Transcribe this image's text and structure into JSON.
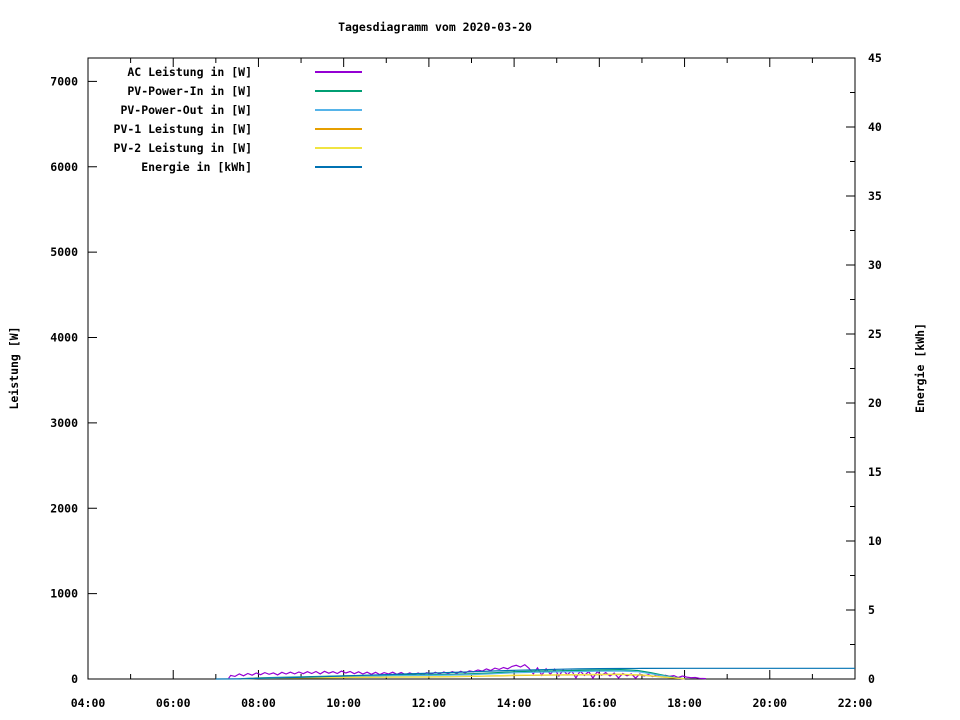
{
  "title": "Tagesdiagramm vom 2020-03-20",
  "colors": {
    "ac": "#9400d3",
    "pv_power_in": "#009e73",
    "pv_power_out": "#56b4e9",
    "pv1": "#e69f00",
    "pv2": "#f0e442",
    "energie": "#0072b2",
    "axis": "#000000",
    "background": "#ffffff"
  },
  "chart_data": {
    "type": "line",
    "title": "Tagesdiagramm vom 2020-03-20",
    "legend_position": "top-left-inside",
    "grid": false,
    "x_axis": {
      "range_hours": [
        4,
        22
      ],
      "major_ticks": [
        {
          "h": 4,
          "label": "04:00"
        },
        {
          "h": 6,
          "label": "06:00"
        },
        {
          "h": 8,
          "label": "08:00"
        },
        {
          "h": 10,
          "label": "10:00"
        },
        {
          "h": 12,
          "label": "12:00"
        },
        {
          "h": 14,
          "label": "14:00"
        },
        {
          "h": 16,
          "label": "16:00"
        },
        {
          "h": 18,
          "label": "18:00"
        },
        {
          "h": 20,
          "label": "20:00"
        },
        {
          "h": 22,
          "label": "22:00"
        }
      ],
      "minor_ticks_hours": [
        5,
        7,
        9,
        11,
        13,
        15,
        17,
        19,
        21
      ]
    },
    "y_left": {
      "label": "Leistung [W]",
      "range": [
        0,
        7274
      ],
      "ticks": [
        0,
        1000,
        2000,
        3000,
        4000,
        5000,
        6000,
        7000
      ]
    },
    "y_right": {
      "label": "Energie [kWh]",
      "range": [
        0,
        45
      ],
      "ticks": [
        0,
        5,
        10,
        15,
        20,
        25,
        30,
        35,
        40,
        45
      ],
      "minor_ticks": [
        2.5,
        7.5,
        12.5,
        17.5,
        22.5,
        27.5,
        32.5,
        37.5,
        42.5
      ]
    },
    "series": [
      {
        "name": "ac-leistung",
        "label": "AC Leistung in [W]",
        "color": "#9400d3",
        "axis": "left",
        "points": [
          [
            7.3,
            8
          ],
          [
            7.35,
            42
          ],
          [
            7.45,
            30
          ],
          [
            7.55,
            60
          ],
          [
            7.65,
            38
          ],
          [
            7.75,
            65
          ],
          [
            7.85,
            45
          ],
          [
            7.95,
            70
          ],
          [
            8.05,
            50
          ],
          [
            8.15,
            75
          ],
          [
            8.25,
            55
          ],
          [
            8.35,
            72
          ],
          [
            8.45,
            48
          ],
          [
            8.55,
            78
          ],
          [
            8.65,
            58
          ],
          [
            8.75,
            80
          ],
          [
            8.85,
            60
          ],
          [
            8.95,
            82
          ],
          [
            9.05,
            62
          ],
          [
            9.15,
            85
          ],
          [
            9.25,
            65
          ],
          [
            9.35,
            88
          ],
          [
            9.45,
            60
          ],
          [
            9.55,
            90
          ],
          [
            9.65,
            68
          ],
          [
            9.75,
            86
          ],
          [
            9.85,
            64
          ],
          [
            9.95,
            92
          ],
          [
            10.05,
            70
          ],
          [
            10.15,
            88
          ],
          [
            10.25,
            62
          ],
          [
            10.35,
            84
          ],
          [
            10.45,
            58
          ],
          [
            10.55,
            80
          ],
          [
            10.65,
            55
          ],
          [
            10.75,
            78
          ],
          [
            10.85,
            52
          ],
          [
            10.95,
            75
          ],
          [
            11.05,
            58
          ],
          [
            11.15,
            80
          ],
          [
            11.25,
            55
          ],
          [
            11.35,
            76
          ],
          [
            11.45,
            50
          ],
          [
            11.55,
            72
          ],
          [
            11.65,
            54
          ],
          [
            11.75,
            70
          ],
          [
            11.85,
            48
          ],
          [
            11.95,
            74
          ],
          [
            12.05,
            56
          ],
          [
            12.15,
            78
          ],
          [
            12.25,
            60
          ],
          [
            12.35,
            82
          ],
          [
            12.45,
            64
          ],
          [
            12.55,
            86
          ],
          [
            12.65,
            68
          ],
          [
            12.75,
            90
          ],
          [
            12.85,
            72
          ],
          [
            12.95,
            95
          ],
          [
            13.05,
            85
          ],
          [
            13.15,
            105
          ],
          [
            13.25,
            92
          ],
          [
            13.35,
            118
          ],
          [
            13.45,
            100
          ],
          [
            13.55,
            128
          ],
          [
            13.65,
            112
          ],
          [
            13.75,
            135
          ],
          [
            13.85,
            120
          ],
          [
            13.95,
            148
          ],
          [
            14.05,
            160
          ],
          [
            14.15,
            140
          ],
          [
            14.25,
            168
          ],
          [
            14.35,
            125
          ],
          [
            14.45,
            60
          ],
          [
            14.55,
            130
          ],
          [
            14.65,
            45
          ],
          [
            14.75,
            120
          ],
          [
            14.85,
            55
          ],
          [
            14.95,
            115
          ],
          [
            15.05,
            35
          ],
          [
            15.15,
            105
          ],
          [
            15.25,
            48
          ],
          [
            15.35,
            98
          ],
          [
            15.45,
            12
          ],
          [
            15.55,
            92
          ],
          [
            15.65,
            42
          ],
          [
            15.75,
            88
          ],
          [
            15.85,
            10
          ],
          [
            15.95,
            85
          ],
          [
            16.05,
            45
          ],
          [
            16.15,
            75
          ],
          [
            16.25,
            35
          ],
          [
            16.35,
            70
          ],
          [
            16.45,
            12
          ],
          [
            16.55,
            65
          ],
          [
            16.65,
            38
          ],
          [
            16.75,
            60
          ],
          [
            16.85,
            10
          ],
          [
            16.95,
            58
          ],
          [
            17.05,
            35
          ],
          [
            17.15,
            52
          ],
          [
            17.25,
            28
          ],
          [
            17.35,
            48
          ],
          [
            17.45,
            22
          ],
          [
            17.55,
            45
          ],
          [
            17.65,
            30
          ],
          [
            17.75,
            40
          ],
          [
            17.85,
            18
          ],
          [
            17.95,
            35
          ],
          [
            18.05,
            22
          ],
          [
            18.15,
            15
          ],
          [
            18.25,
            18
          ],
          [
            18.35,
            8
          ],
          [
            18.5,
            5
          ]
        ]
      },
      {
        "name": "pv-power-in",
        "label": "PV-Power-In in [W]",
        "color": "#009e73",
        "axis": "left",
        "points": [
          [
            7.6,
            3
          ],
          [
            7.75,
            8
          ],
          [
            8,
            14
          ],
          [
            8.5,
            20
          ],
          [
            9,
            26
          ],
          [
            9.5,
            31
          ],
          [
            10,
            37
          ],
          [
            10.5,
            42
          ],
          [
            11,
            45
          ],
          [
            11.5,
            48
          ],
          [
            12,
            50
          ],
          [
            12.5,
            55
          ],
          [
            13,
            62
          ],
          [
            13.5,
            72
          ],
          [
            14,
            85
          ],
          [
            14.5,
            92
          ],
          [
            15,
            96
          ],
          [
            15.5,
            101
          ],
          [
            16,
            106
          ],
          [
            16.5,
            110
          ],
          [
            16.9,
            100
          ],
          [
            17.2,
            75
          ],
          [
            17.5,
            45
          ],
          [
            17.75,
            20
          ],
          [
            18,
            4
          ]
        ]
      },
      {
        "name": "pv-power-out",
        "label": "PV-Power-Out in [W]",
        "color": "#56b4e9",
        "axis": "left",
        "points": [
          [
            7.6,
            2
          ],
          [
            8,
            10
          ],
          [
            8.5,
            15
          ],
          [
            9,
            20
          ],
          [
            9.5,
            25
          ],
          [
            10,
            30
          ],
          [
            10.5,
            34
          ],
          [
            11,
            37
          ],
          [
            11.5,
            40
          ],
          [
            12,
            42
          ],
          [
            12.5,
            46
          ],
          [
            13,
            52
          ],
          [
            13.5,
            61
          ],
          [
            14,
            73
          ],
          [
            14.5,
            79
          ],
          [
            15,
            83
          ],
          [
            15.5,
            87
          ],
          [
            16,
            91
          ],
          [
            16.5,
            94
          ],
          [
            16.9,
            85
          ],
          [
            17.2,
            62
          ],
          [
            17.5,
            36
          ],
          [
            17.75,
            15
          ],
          [
            18,
            2
          ]
        ]
      },
      {
        "name": "pv1-leistung",
        "label": "PV-1 Leistung in [W]",
        "color": "#e69f00",
        "axis": "left",
        "points": [
          [
            7.6,
            1
          ],
          [
            8,
            7
          ],
          [
            9,
            13
          ],
          [
            10,
            18
          ],
          [
            11,
            22
          ],
          [
            12,
            24
          ],
          [
            13,
            30
          ],
          [
            14,
            41
          ],
          [
            15,
            47
          ],
          [
            16,
            52
          ],
          [
            16.5,
            54
          ],
          [
            17,
            45
          ],
          [
            17.5,
            22
          ],
          [
            18,
            2
          ]
        ]
      },
      {
        "name": "pv2-leistung",
        "label": "PV-2 Leistung in [W]",
        "color": "#f0e442",
        "axis": "left",
        "points": [
          [
            7.6,
            2
          ],
          [
            8,
            8
          ],
          [
            9,
            14
          ],
          [
            10,
            19
          ],
          [
            11,
            23
          ],
          [
            12,
            26
          ],
          [
            13,
            32
          ],
          [
            14,
            44
          ],
          [
            15,
            49
          ],
          [
            16,
            54
          ],
          [
            16.5,
            56
          ],
          [
            17,
            48
          ],
          [
            17.5,
            23
          ],
          [
            18,
            2
          ]
        ]
      },
      {
        "name": "energie",
        "label": "Energie in [kWh]",
        "color": "#0072b2",
        "axis": "right",
        "points": [
          [
            7,
            0
          ],
          [
            7.5,
            0.01
          ],
          [
            8,
            0.04
          ],
          [
            8.5,
            0.08
          ],
          [
            9,
            0.12
          ],
          [
            9.5,
            0.17
          ],
          [
            10,
            0.22
          ],
          [
            10.5,
            0.27
          ],
          [
            11,
            0.32
          ],
          [
            11.5,
            0.37
          ],
          [
            12,
            0.42
          ],
          [
            12.5,
            0.47
          ],
          [
            13,
            0.52
          ],
          [
            13.5,
            0.58
          ],
          [
            14,
            0.63
          ],
          [
            14.5,
            0.67
          ],
          [
            15,
            0.7
          ],
          [
            15.5,
            0.73
          ],
          [
            16,
            0.75
          ],
          [
            16.5,
            0.76
          ],
          [
            17,
            0.77
          ],
          [
            18,
            0.775
          ],
          [
            22,
            0.775
          ]
        ]
      }
    ]
  }
}
